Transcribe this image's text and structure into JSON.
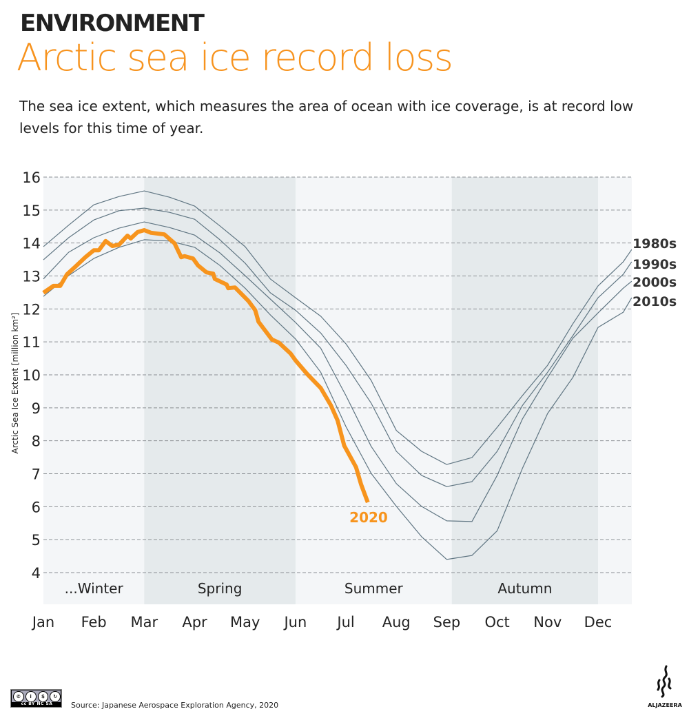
{
  "header": {
    "kicker": "ENVIRONMENT",
    "title": "Arctic sea ice record loss",
    "subtitle": "The sea ice extent, which measures the area of ocean with ice coverage, is at record low levels for this time of year."
  },
  "footer": {
    "license_badge": "cc BY NC SA",
    "source": "Source: Japanese Aerospace Exploration Agency, 2020",
    "logo": "ALJAZEERA"
  },
  "colors": {
    "highlight": "#f7941d",
    "decades": "#5f7582",
    "band_light": "#f4f6f8",
    "band_dark": "#e5eaec",
    "grid": "#8a8f93"
  },
  "chart_data": {
    "type": "line",
    "ylabel": "Arctic Sea Ice Extent [million km²]",
    "ylim": [
      4,
      16
    ],
    "yticks": [
      4,
      5,
      6,
      7,
      8,
      9,
      10,
      11,
      12,
      13,
      14,
      15,
      16
    ],
    "grid": true,
    "xticks": [
      "Jan",
      "Feb",
      "Mar",
      "Apr",
      "May",
      "Jun",
      "Jul",
      "Aug",
      "Sep",
      "Oct",
      "Nov",
      "Dec"
    ],
    "seasons": [
      {
        "label": "...Winter",
        "start": "01-01",
        "end": "03-01",
        "shaded": false
      },
      {
        "label": "Spring",
        "start": "03-01",
        "end": "06-01",
        "shaded": true
      },
      {
        "label": "Summer",
        "start": "06-01",
        "end": "09-04",
        "shaded": false
      },
      {
        "label": "Autumn",
        "start": "09-04",
        "end": "12-01",
        "shaded": true
      }
    ],
    "series": [
      {
        "name": "1980s",
        "x": [
          "01-01",
          "01-16",
          "02-01",
          "02-16",
          "03-01",
          "03-16",
          "04-01",
          "04-16",
          "05-01",
          "05-16",
          "06-01",
          "06-16",
          "07-01",
          "07-16",
          "08-01",
          "08-16",
          "09-01",
          "09-16",
          "10-01",
          "10-16",
          "11-01",
          "11-16",
          "12-01",
          "12-16",
          "12-21"
        ],
        "y": [
          13.89,
          14.54,
          15.16,
          15.41,
          15.58,
          15.39,
          15.12,
          14.52,
          13.89,
          12.91,
          12.34,
          11.78,
          10.94,
          9.83,
          8.31,
          7.68,
          7.28,
          7.49,
          8.41,
          9.37,
          10.29,
          11.55,
          12.7,
          13.43,
          13.8
        ]
      },
      {
        "name": "1990s",
        "x": [
          "01-01",
          "01-16",
          "02-01",
          "02-16",
          "03-01",
          "03-16",
          "04-01",
          "04-16",
          "05-01",
          "05-16",
          "06-01",
          "06-16",
          "07-01",
          "07-16",
          "08-01",
          "08-16",
          "09-01",
          "09-16",
          "10-01",
          "10-16",
          "11-01",
          "11-16",
          "12-01",
          "12-16",
          "12-21"
        ],
        "y": [
          13.49,
          14.16,
          14.7,
          14.98,
          15.06,
          14.93,
          14.72,
          14.1,
          13.39,
          12.49,
          11.96,
          11.27,
          10.29,
          9.14,
          7.68,
          6.95,
          6.61,
          6.76,
          7.68,
          9.07,
          10.08,
          11.19,
          12.34,
          13.05,
          13.43
        ]
      },
      {
        "name": "2000s",
        "x": [
          "01-01",
          "01-16",
          "02-01",
          "02-16",
          "03-01",
          "03-16",
          "04-01",
          "04-16",
          "05-01",
          "05-16",
          "06-01",
          "06-16",
          "07-01",
          "07-16",
          "08-01",
          "08-16",
          "09-01",
          "09-16",
          "10-01",
          "10-16",
          "11-01",
          "11-16",
          "12-01",
          "12-16",
          "12-21"
        ],
        "y": [
          12.91,
          13.72,
          14.16,
          14.45,
          14.64,
          14.47,
          14.24,
          13.7,
          13.01,
          12.3,
          11.59,
          10.81,
          9.37,
          7.83,
          6.7,
          6.01,
          5.57,
          5.55,
          6.95,
          8.66,
          9.92,
          11.11,
          11.88,
          12.63,
          12.84
        ]
      },
      {
        "name": "2010s",
        "x": [
          "01-01",
          "01-16",
          "02-01",
          "02-16",
          "03-01",
          "03-16",
          "04-01",
          "04-16",
          "05-01",
          "05-16",
          "06-01",
          "06-16",
          "07-01",
          "07-16",
          "08-01",
          "08-16",
          "09-01",
          "09-16",
          "10-01",
          "10-16",
          "11-01",
          "11-16",
          "12-01",
          "12-16",
          "12-21"
        ],
        "y": [
          12.38,
          13.01,
          13.53,
          13.87,
          14.1,
          14.06,
          13.87,
          13.32,
          12.63,
          11.82,
          11.09,
          10.08,
          8.43,
          7.01,
          6.01,
          5.09,
          4.4,
          4.52,
          5.27,
          7.16,
          8.83,
          9.92,
          11.44,
          11.9,
          12.34
        ]
      },
      {
        "name": "2020",
        "highlight": true,
        "x": [
          "01-01",
          "01-07",
          "01-11",
          "01-15",
          "01-20",
          "01-26",
          "02-01",
          "02-04",
          "02-08",
          "02-12",
          "02-16",
          "02-21",
          "02-23",
          "02-27",
          "03-01",
          "03-05",
          "03-13",
          "03-19",
          "03-23",
          "03-25",
          "03-30",
          "04-03",
          "04-08",
          "04-12",
          "04-13",
          "04-20",
          "04-21",
          "04-25",
          "05-03",
          "05-07",
          "05-09",
          "05-17",
          "05-21",
          "05-28",
          "05-31",
          "06-08",
          "06-16",
          "06-22",
          "06-26",
          "06-30",
          "07-07",
          "07-10",
          "07-14"
        ],
        "y": [
          12.49,
          12.7,
          12.7,
          13.05,
          13.28,
          13.57,
          13.78,
          13.78,
          14.06,
          13.91,
          13.95,
          14.22,
          14.14,
          14.33,
          14.39,
          14.31,
          14.26,
          13.99,
          13.57,
          13.6,
          13.53,
          13.32,
          13.11,
          13.07,
          12.91,
          12.74,
          12.63,
          12.65,
          12.24,
          11.96,
          11.61,
          11.07,
          10.98,
          10.65,
          10.44,
          10.02,
          9.6,
          9.08,
          8.62,
          7.85,
          7.2,
          6.68,
          6.13
        ]
      }
    ]
  }
}
